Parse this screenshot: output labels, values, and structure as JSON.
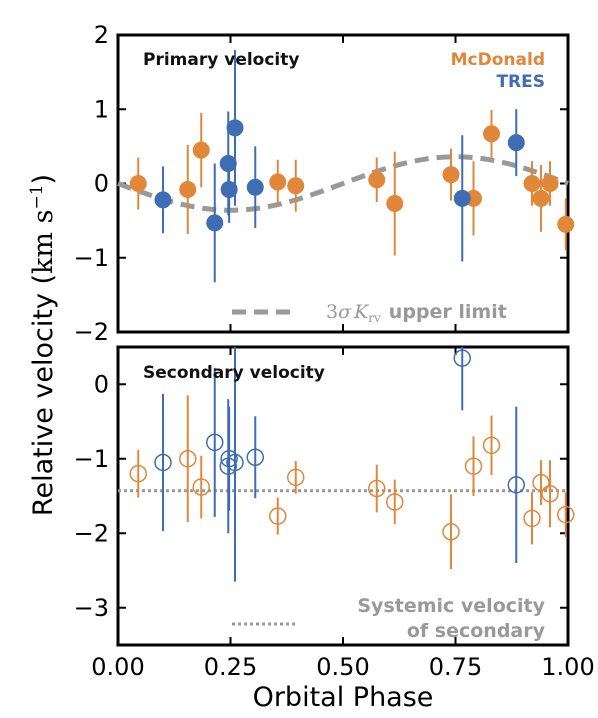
{
  "chart_data": [
    {
      "type": "scatter",
      "panel": "top",
      "title": "Primary velocity",
      "ylabel": "Relative velocity (km s⁻¹)",
      "ylim": [
        -2,
        2
      ],
      "xlim": [
        0,
        1
      ],
      "yticks": [
        "2",
        "1",
        "0",
        "−1",
        "−2"
      ],
      "yticks_values": [
        2,
        1,
        0,
        -1,
        -2
      ],
      "grid": false,
      "legend_placement": "top-right",
      "series": [
        {
          "name": "McDonald",
          "color": "#e0873a",
          "marker": "filled-circle",
          "points": [
            {
              "x": 0.045,
              "y": 0.0,
              "err": 0.35
            },
            {
              "x": 0.155,
              "y": -0.08,
              "err": 0.6
            },
            {
              "x": 0.185,
              "y": 0.45,
              "err": 0.5
            },
            {
              "x": 0.355,
              "y": 0.02,
              "err": 0.3
            },
            {
              "x": 0.395,
              "y": -0.03,
              "err": 0.35
            },
            {
              "x": 0.575,
              "y": 0.05,
              "err": 0.3
            },
            {
              "x": 0.615,
              "y": -0.27,
              "err": 0.7
            },
            {
              "x": 0.74,
              "y": 0.12,
              "err": 0.35
            },
            {
              "x": 0.79,
              "y": -0.2,
              "err": 0.5
            },
            {
              "x": 0.83,
              "y": 0.67,
              "err": 0.32
            },
            {
              "x": 0.92,
              "y": 0.0,
              "err": 0.3
            },
            {
              "x": 0.94,
              "y": -0.2,
              "err": 0.45
            },
            {
              "x": 0.96,
              "y": 0.0,
              "err": 0.3
            },
            {
              "x": 0.995,
              "y": -0.55,
              "err": 0.35
            }
          ]
        },
        {
          "name": "TRES",
          "color": "#3f6db3",
          "marker": "filled-circle",
          "points": [
            {
              "x": 0.1,
              "y": -0.22,
              "err": 0.45
            },
            {
              "x": 0.215,
              "y": -0.53,
              "err": 0.8
            },
            {
              "x": 0.245,
              "y": 0.27,
              "err": 0.7
            },
            {
              "x": 0.247,
              "y": -0.08,
              "err": 0.45
            },
            {
              "x": 0.26,
              "y": 0.75,
              "err": 1.05
            },
            {
              "x": 0.305,
              "y": -0.05,
              "err": 0.55
            },
            {
              "x": 0.765,
              "y": -0.2,
              "err": 0.85
            },
            {
              "x": 0.885,
              "y": 0.55,
              "err": 0.45
            }
          ]
        }
      ],
      "model_curve": {
        "name": "3σ K_rv upper limit",
        "color": "#999999",
        "style": "dashed",
        "amplitude": 0.36,
        "description_label_parts": [
          "3",
          "σ",
          "K",
          "rv",
          "upper limit"
        ]
      }
    },
    {
      "type": "scatter",
      "panel": "bottom",
      "title": "Secondary velocity",
      "xlabel": "Orbital Phase",
      "ylim": [
        -3.5,
        0.5
      ],
      "xlim": [
        0,
        1
      ],
      "yticks": [
        "0",
        "−1",
        "−2",
        "−3"
      ],
      "yticks_values": [
        0,
        -1,
        -2,
        -3
      ],
      "xticks": [
        "0.00",
        "0.25",
        "0.50",
        "0.75",
        "1.00"
      ],
      "xticks_values": [
        0,
        0.25,
        0.5,
        0.75,
        1.0
      ],
      "grid": false,
      "series": [
        {
          "name": "McDonald",
          "color": "#e0873a",
          "marker": "open-circle",
          "points": [
            {
              "x": 0.045,
              "y": -1.2,
              "err": 0.32
            },
            {
              "x": 0.155,
              "y": -1.0,
              "err": 0.85
            },
            {
              "x": 0.185,
              "y": -1.38,
              "err": 0.42
            },
            {
              "x": 0.355,
              "y": -1.77,
              "err": 0.25
            },
            {
              "x": 0.395,
              "y": -1.25,
              "err": 0.22
            },
            {
              "x": 0.575,
              "y": -1.4,
              "err": 0.32
            },
            {
              "x": 0.615,
              "y": -1.58,
              "err": 0.3
            },
            {
              "x": 0.74,
              "y": -1.98,
              "err": 0.5
            },
            {
              "x": 0.79,
              "y": -1.1,
              "err": 0.4
            },
            {
              "x": 0.83,
              "y": -0.82,
              "err": 0.4
            },
            {
              "x": 0.92,
              "y": -1.8,
              "err": 0.35
            },
            {
              "x": 0.94,
              "y": -1.32,
              "err": 0.3
            },
            {
              "x": 0.96,
              "y": -1.47,
              "err": 0.45
            },
            {
              "x": 0.995,
              "y": -1.75,
              "err": 0.3
            }
          ]
        },
        {
          "name": "TRES",
          "color": "#3f6db3",
          "marker": "open-circle",
          "points": [
            {
              "x": 0.1,
              "y": -1.05,
              "err": 0.92
            },
            {
              "x": 0.215,
              "y": -0.78,
              "err": 1.0
            },
            {
              "x": 0.245,
              "y": -1.1,
              "err": 0.9
            },
            {
              "x": 0.247,
              "y": -1.0,
              "err": 0.7
            },
            {
              "x": 0.26,
              "y": -1.05,
              "err": 1.6
            },
            {
              "x": 0.305,
              "y": -0.98,
              "err": 0.55
            },
            {
              "x": 0.765,
              "y": 0.35,
              "err": 0.7
            },
            {
              "x": 0.885,
              "y": -1.35,
              "err": 1.05
            }
          ]
        }
      ],
      "systemic_velocity": {
        "value": -1.43,
        "color": "#999999",
        "style": "dotted",
        "label_line1": "Systemic velocity",
        "label_line2": "of secondary"
      }
    }
  ]
}
